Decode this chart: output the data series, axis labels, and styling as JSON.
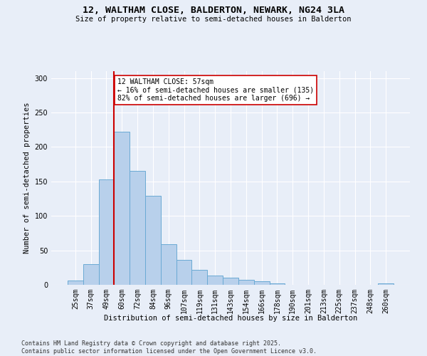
{
  "title1": "12, WALTHAM CLOSE, BALDERTON, NEWARK, NG24 3LA",
  "title2": "Size of property relative to semi-detached houses in Balderton",
  "xlabel": "Distribution of semi-detached houses by size in Balderton",
  "ylabel": "Number of semi-detached properties",
  "categories": [
    "25sqm",
    "37sqm",
    "49sqm",
    "60sqm",
    "72sqm",
    "84sqm",
    "96sqm",
    "107sqm",
    "119sqm",
    "131sqm",
    "143sqm",
    "154sqm",
    "166sqm",
    "178sqm",
    "190sqm",
    "201sqm",
    "213sqm",
    "225sqm",
    "237sqm",
    "248sqm",
    "260sqm"
  ],
  "values": [
    6,
    30,
    153,
    222,
    165,
    129,
    59,
    36,
    22,
    13,
    10,
    7,
    5,
    2,
    0,
    0,
    0,
    0,
    0,
    0,
    2
  ],
  "bar_color": "#b8d0eb",
  "bar_edge_color": "#6aaad4",
  "vline_x_index": 2.5,
  "vline_color": "#cc0000",
  "annotation_text": "12 WALTHAM CLOSE: 57sqm\n← 16% of semi-detached houses are smaller (135)\n82% of semi-detached houses are larger (696) →",
  "annotation_box_color": "#ffffff",
  "annotation_box_edge": "#cc0000",
  "ylim": [
    0,
    310
  ],
  "yticks": [
    0,
    50,
    100,
    150,
    200,
    250,
    300
  ],
  "footnote": "Contains HM Land Registry data © Crown copyright and database right 2025.\nContains public sector information licensed under the Open Government Licence v3.0.",
  "bg_color": "#e8eef8",
  "grid_color": "#ffffff"
}
